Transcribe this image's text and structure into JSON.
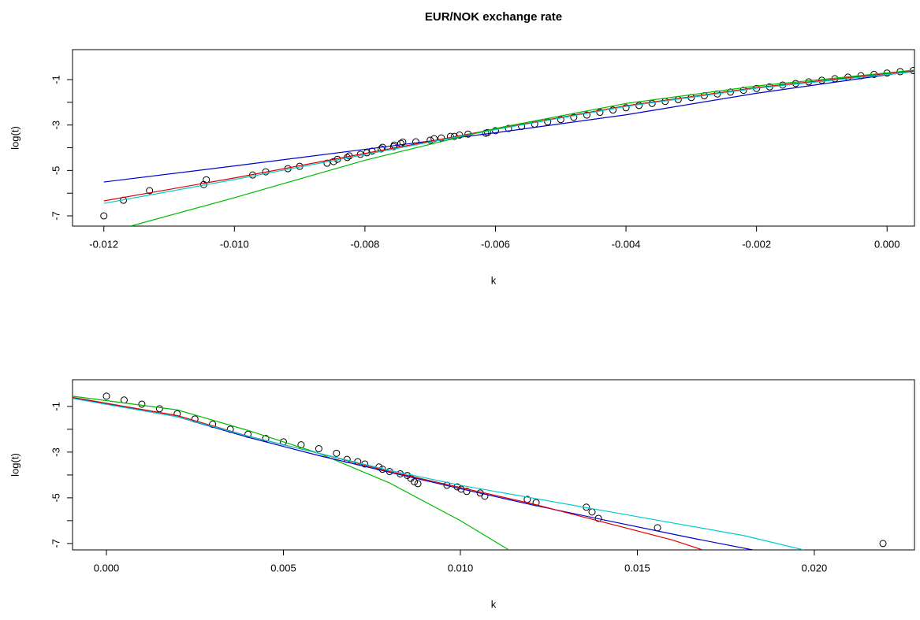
{
  "chart_data": [
    {
      "type": "scatter",
      "title": "EUR/NOK exchange rate",
      "xlabel": "k",
      "ylabel": "log(t)",
      "xlim": [
        -0.01248,
        0.00042
      ],
      "ylim": [
        -7.45,
        0.32
      ],
      "xticks": [
        -0.012,
        {
          "value": -0.01,
          "label": "-0.010"
        },
        -0.008,
        -0.006,
        -0.004,
        -0.002,
        {
          "value": 0,
          "label": "0.000"
        }
      ],
      "yticks": [
        -1,
        -3,
        -5,
        -7
      ],
      "yminor_ticks": [
        -2,
        -4,
        -6
      ],
      "points": {
        "color": "#000000",
        "x": [
          -0.012,
          -0.0117,
          -0.0113,
          -0.01047,
          -0.01043,
          -0.00972,
          -0.00952,
          -0.00918,
          -0.009,
          -0.00858,
          -0.00848,
          -0.00842,
          -0.00827,
          -0.00824,
          -0.00807,
          -0.00797,
          -0.00789,
          -0.00775,
          -0.00773,
          -0.00756,
          -0.00755,
          -0.00745,
          -0.00742,
          -0.00722,
          -0.007,
          -0.00694,
          -0.00683,
          -0.00669,
          -0.00663,
          -0.00655,
          -0.00642,
          -0.00615,
          -0.00612,
          -0.006,
          -0.0058,
          -0.0056,
          -0.0054,
          -0.0052,
          -0.005,
          -0.0048,
          -0.0046,
          -0.0044,
          -0.0042,
          -0.004,
          -0.0038,
          -0.0036,
          -0.0034,
          -0.0032,
          -0.003,
          -0.0028,
          -0.0026,
          -0.0024,
          -0.0022,
          -0.002,
          -0.0018,
          -0.0016,
          -0.0014,
          -0.0012,
          -0.001,
          -0.0008,
          -0.0006,
          -0.0004,
          -0.0002,
          0,
          0.0002,
          0.0004
        ],
        "values": [
          -7,
          -6.31,
          -5.89,
          -5.62,
          -5.41,
          -5.2,
          -5.06,
          -4.92,
          -4.82,
          -4.68,
          -4.61,
          -4.51,
          -4.43,
          -4.36,
          -4.29,
          -4.22,
          -4.15,
          -4.05,
          -3.98,
          -3.95,
          -3.88,
          -3.81,
          -3.75,
          -3.74,
          -3.67,
          -3.6,
          -3.57,
          -3.5,
          -3.5,
          -3.44,
          -3.4,
          -3.36,
          -3.33,
          -3.25,
          -3.15,
          -3.06,
          -2.96,
          -2.86,
          -2.76,
          -2.66,
          -2.56,
          -2.44,
          -2.34,
          -2.24,
          -2.14,
          -2.05,
          -1.96,
          -1.88,
          -1.79,
          -1.71,
          -1.63,
          -1.55,
          -1.47,
          -1.39,
          -1.32,
          -1.24,
          -1.17,
          -1.1,
          -1.03,
          -0.96,
          -0.89,
          -0.83,
          -0.77,
          -0.71,
          -0.65,
          -0.6
        ]
      },
      "lines": [
        {
          "color": "#0000cc",
          "x": [
            -0.012,
            -0.01,
            -0.008,
            -0.006,
            -0.004,
            -0.002,
            0.00042
          ],
          "values": [
            -5.51,
            -4.8,
            -4.07,
            -3.34,
            -2.55,
            -1.6,
            -0.62
          ]
        },
        {
          "color": "#dd0000",
          "x": [
            -0.012,
            -0.01,
            -0.008,
            -0.006,
            -0.004,
            -0.002,
            0.00042
          ],
          "values": [
            -6.34,
            -5.33,
            -4.25,
            -3.18,
            -2.15,
            -1.35,
            -0.6
          ]
        },
        {
          "color": "#00cccc",
          "x": [
            -0.012,
            -0.01,
            -0.008,
            -0.006,
            -0.004,
            -0.002,
            0.00042
          ],
          "values": [
            -6.45,
            -5.4,
            -4.3,
            -3.2,
            -2.18,
            -1.38,
            -0.65
          ]
        },
        {
          "color": "#00bb00",
          "x": [
            -0.01159,
            -0.01,
            -0.008,
            -0.006,
            -0.004,
            -0.002,
            0.00042
          ],
          "values": [
            -7.45,
            -6.2,
            -4.55,
            -3.15,
            -2.05,
            -1.28,
            -0.58
          ]
        }
      ]
    },
    {
      "type": "scatter",
      "xlabel": "k",
      "ylabel": "log(t)",
      "xlim": [
        -0.000958,
        0.02283
      ],
      "ylim": [
        -7.28,
        0.17
      ],
      "xticks": [
        {
          "value": 0,
          "label": "0.000"
        },
        0.005,
        {
          "value": 0.01,
          "label": "0.010"
        },
        0.015,
        {
          "value": 0.02,
          "label": "0.020"
        }
      ],
      "yticks": [
        -1,
        -3,
        -5,
        -7
      ],
      "yminor_ticks": [
        -2,
        -4,
        -6
      ],
      "points": {
        "color": "#000000",
        "x": [
          0,
          0.0005,
          0.001,
          0.0015,
          0.002,
          0.0025,
          0.003,
          0.0035,
          0.004,
          0.0045,
          0.005,
          0.0055,
          0.006,
          0.0065,
          0.0068,
          0.0071,
          0.0073,
          0.0077,
          0.0078,
          0.008,
          0.0083,
          0.0085,
          0.0086,
          0.0087,
          0.0088,
          0.00962,
          0.00991,
          0.01002,
          0.01018,
          0.01056,
          0.01069,
          0.01189,
          0.01214,
          0.01356,
          0.01372,
          0.0139,
          0.01557,
          0.02194
        ],
        "values": [
          -0.55,
          -0.72,
          -0.9,
          -1.1,
          -1.32,
          -1.55,
          -1.78,
          -2,
          -2.22,
          -2.4,
          -2.55,
          -2.68,
          -2.85,
          -3.05,
          -3.32,
          -3.42,
          -3.52,
          -3.65,
          -3.75,
          -3.85,
          -3.95,
          -4.02,
          -4.15,
          -4.3,
          -4.38,
          -4.45,
          -4.52,
          -4.62,
          -4.72,
          -4.79,
          -4.93,
          -5.07,
          -5.21,
          -5.41,
          -5.62,
          -5.9,
          -6.31,
          -7
        ]
      },
      "lines": [
        {
          "color": "#00bb00",
          "x": [
            -0.000958,
            0.002,
            0.004,
            0.006,
            0.008,
            0.01,
            0.01137
          ],
          "values": [
            -0.55,
            -1.15,
            -2.05,
            -3.05,
            -4.35,
            -6,
            -7.28
          ]
        },
        {
          "color": "#0000cc",
          "x": [
            -0.000958,
            0.002,
            0.004,
            0.006,
            0.008,
            0.01,
            0.012,
            0.014,
            0.0165,
            0.01826
          ],
          "values": [
            -0.62,
            -1.45,
            -2.35,
            -3.15,
            -3.88,
            -4.6,
            -5.3,
            -5.95,
            -6.75,
            -7.28
          ]
        },
        {
          "color": "#dd0000",
          "x": [
            -0.000958,
            0.002,
            0.004,
            0.006,
            0.008,
            0.01,
            0.012,
            0.014,
            0.016,
            0.01684
          ],
          "values": [
            -0.6,
            -1.4,
            -2.3,
            -3.05,
            -3.85,
            -4.55,
            -5.25,
            -6.05,
            -6.85,
            -7.28
          ]
        },
        {
          "color": "#00cccc",
          "x": [
            -0.000958,
            0.002,
            0.004,
            0.006,
            0.008,
            0.01,
            0.012,
            0.014,
            0.016,
            0.018,
            0.0197
          ],
          "values": [
            -0.65,
            -1.45,
            -2.3,
            -3.05,
            -3.8,
            -4.45,
            -5,
            -5.55,
            -6.1,
            -6.65,
            -7.28
          ]
        }
      ]
    }
  ]
}
